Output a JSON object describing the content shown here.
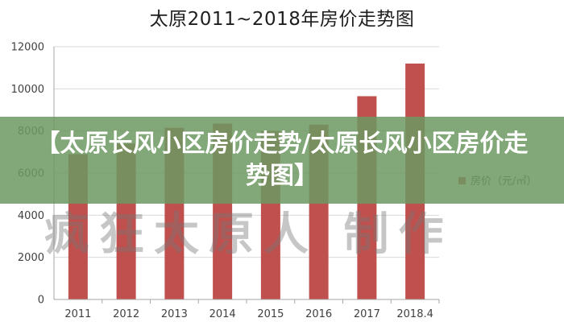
{
  "chart_data": {
    "type": "bar",
    "title": "太原2011~2018年房价走势图",
    "categories": [
      "2011",
      "2012",
      "2013",
      "2014",
      "2015",
      "2016",
      "2017",
      "2018.4"
    ],
    "series": [
      {
        "name": "房价（元/㎡）",
        "values": [
          6900,
          7400,
          8150,
          8350,
          8000,
          8300,
          9650,
          11200
        ]
      }
    ],
    "y_ticks": [
      "0",
      "2000",
      "4000",
      "6000",
      "8000",
      "10000",
      "12000"
    ],
    "ylim": [
      0,
      12000
    ],
    "grid": true,
    "legend_position": "right",
    "bar_color": "#c0504d"
  },
  "banner": {
    "text": "【太原长风小区房价走势/太原长风小区房价走势图】"
  },
  "watermark": {
    "text": "疯狂太原人 制作"
  }
}
